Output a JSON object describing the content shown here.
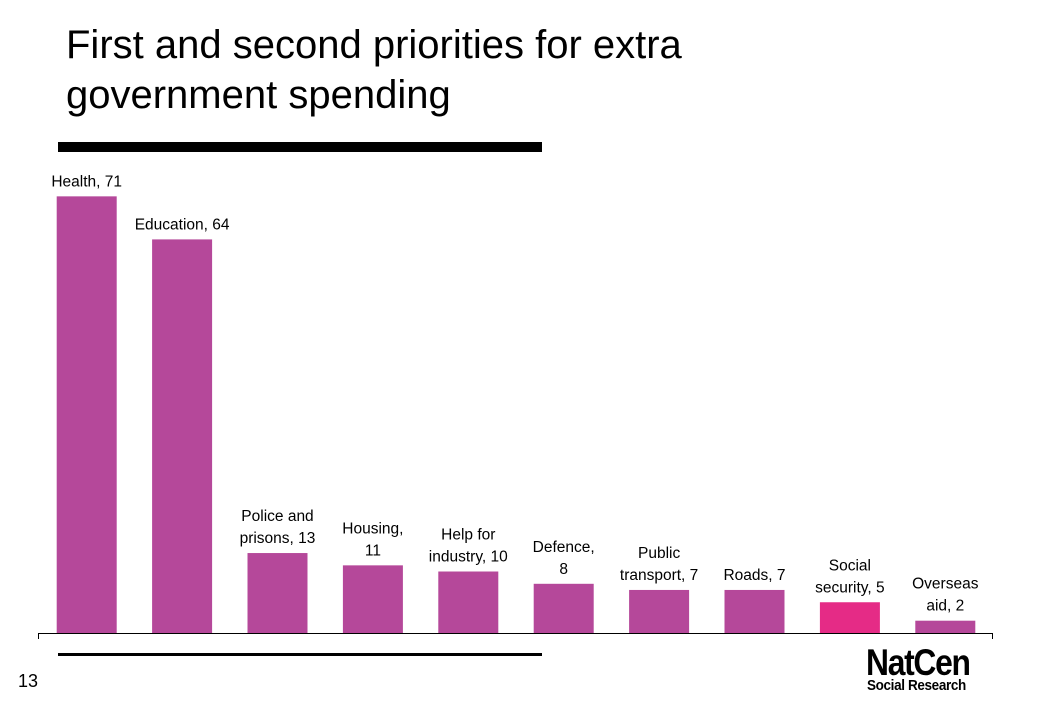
{
  "title": "First and second priorities for extra government spending",
  "page_number": "13",
  "logo": {
    "main": "NatCen",
    "sub": "Social Research"
  },
  "colors": {
    "bar": "#b5489a",
    "highlight_bar": "#e52b86",
    "axis": "#000000"
  },
  "chart_data": {
    "type": "bar",
    "title": "First and second priorities for extra government spending",
    "xlabel": "",
    "ylabel": "",
    "ylim": [
      0,
      75
    ],
    "grid": false,
    "categories": [
      "Health",
      "Education",
      "Police and prisons",
      "Housing",
      "Help for industry",
      "Defence",
      "Public transport",
      "Roads",
      "Social security",
      "Overseas aid"
    ],
    "values": [
      71,
      64,
      13,
      11,
      10,
      8,
      7,
      7,
      5,
      2
    ],
    "data_labels": [
      [
        "Health, 71"
      ],
      [
        "Education, 64"
      ],
      [
        "Police and",
        "prisons, 13"
      ],
      [
        "Housing,",
        "11"
      ],
      [
        "Help for",
        "industry, 10"
      ],
      [
        "Defence,",
        "8"
      ],
      [
        "Public",
        "transport, 7"
      ],
      [
        "Roads, 7"
      ],
      [
        "Social",
        "security, 5"
      ],
      [
        "Overseas",
        "aid, 2"
      ]
    ],
    "highlight_index": 8
  }
}
